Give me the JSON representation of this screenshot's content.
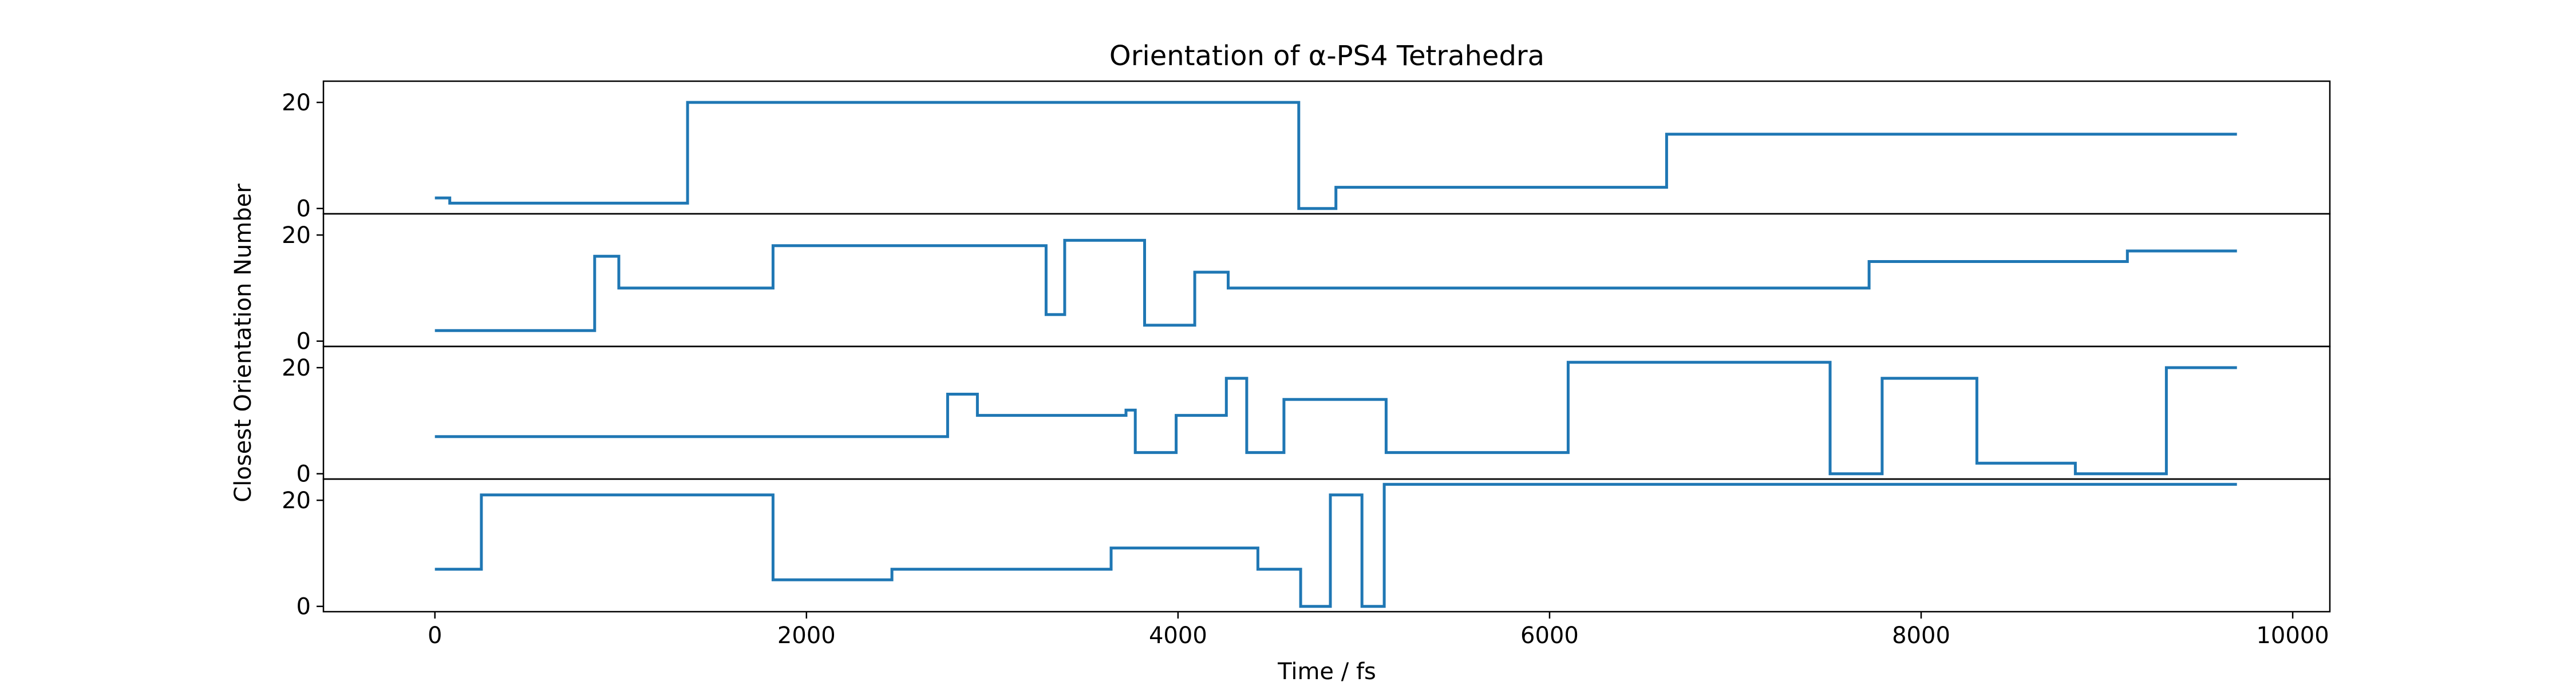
{
  "chart_data": {
    "type": "line",
    "drawstyle": "steps-post",
    "title": "Orientation of α-PS4 Tetrahedra",
    "xlabel": "Time / fs",
    "ylabel": "Closest Orientation Number",
    "xlim": [
      -600,
      10200
    ],
    "ylim": [
      -1,
      24
    ],
    "xticks": [
      0,
      2000,
      4000,
      6000,
      8000,
      10000
    ],
    "xtick_labels": [
      "0",
      "2000",
      "4000",
      "6000",
      "8000",
      "10000"
    ],
    "yticks": [
      0,
      20
    ],
    "ytick_labels": [
      "0",
      "20"
    ],
    "grid": false,
    "legend": false,
    "line_color": "#1f77b4",
    "series": [
      {
        "x": [
          0,
          80,
          1360,
          4650,
          4850,
          6630,
          9700
        ],
        "y": [
          2,
          1,
          20,
          0,
          4,
          14,
          14
        ]
      },
      {
        "x": [
          0,
          860,
          990,
          1820,
          3290,
          3390,
          3820,
          4090,
          4270,
          7720,
          9110,
          9700
        ],
        "y": [
          2,
          16,
          10,
          18,
          5,
          19,
          3,
          13,
          10,
          15,
          17,
          17
        ]
      },
      {
        "x": [
          0,
          2760,
          2920,
          3720,
          3770,
          3990,
          4260,
          4370,
          4570,
          5120,
          6100,
          7510,
          7790,
          8300,
          8830,
          9320,
          9700
        ],
        "y": [
          7,
          15,
          11,
          12,
          4,
          11,
          18,
          4,
          14,
          4,
          21,
          0,
          18,
          2,
          0,
          20,
          20
        ]
      },
      {
        "x": [
          0,
          250,
          1820,
          2460,
          3640,
          4430,
          4660,
          4820,
          4990,
          5110,
          9700
        ],
        "y": [
          7,
          21,
          5,
          7,
          11,
          7,
          0,
          21,
          0,
          23,
          23
        ]
      }
    ]
  }
}
